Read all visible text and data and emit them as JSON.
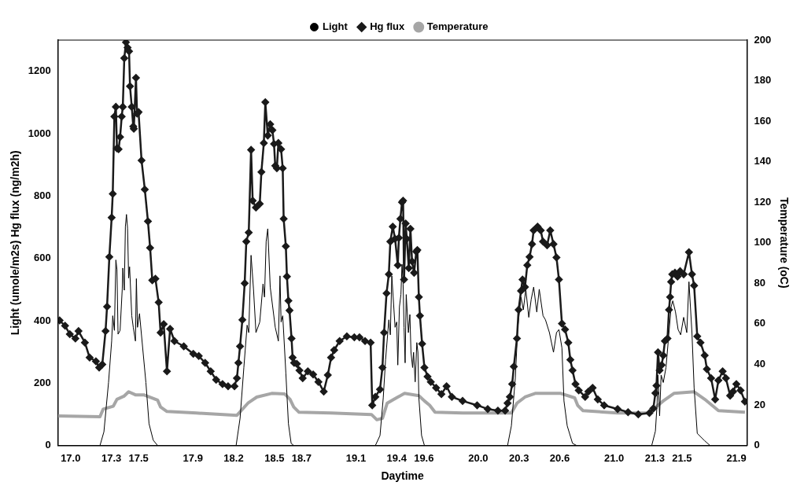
{
  "chart_data": {
    "type": "line",
    "xlabel": "Daytime",
    "ylabel": "Light (umole/m2s) Hg flux (ng/m2h)",
    "y2label": "Temperature (oC)",
    "xlim": [
      16.907,
      21.978
    ],
    "ylim": [
      0,
      1300
    ],
    "y2lim": [
      0,
      200
    ],
    "xticks": [
      {
        "value": 17.0,
        "label": "17.0"
      },
      {
        "value": 17.3,
        "label": "17.3"
      },
      {
        "value": 17.5,
        "label": "17.5"
      },
      {
        "value": 17.9,
        "label": "17.9"
      },
      {
        "value": 18.2,
        "label": "18.2"
      },
      {
        "value": 18.5,
        "label": "18.5"
      },
      {
        "value": 18.7,
        "label": "18.7"
      },
      {
        "value": 19.1,
        "label": "19.1"
      },
      {
        "value": 19.4,
        "label": "19.4"
      },
      {
        "value": 19.6,
        "label": "19.6"
      },
      {
        "value": 20.0,
        "label": "20.0"
      },
      {
        "value": 20.3,
        "label": "20.3"
      },
      {
        "value": 20.6,
        "label": "20.6"
      },
      {
        "value": 21.0,
        "label": "21.0"
      },
      {
        "value": 21.3,
        "label": "21.3"
      },
      {
        "value": 21.5,
        "label": "21.5"
      },
      {
        "value": 21.9,
        "label": "21.9"
      }
    ],
    "yticks": [
      0,
      200,
      400,
      600,
      800,
      1000,
      1200
    ],
    "y2ticks": [
      0,
      20,
      40,
      60,
      80,
      100,
      120,
      140,
      160,
      180,
      200
    ],
    "legend": "top",
    "series": [
      {
        "name": "Light",
        "color": "#000000",
        "marker": "none",
        "x": [
          16.907,
          17.216,
          17.245,
          17.279,
          17.302,
          17.31,
          17.322,
          17.333,
          17.341,
          17.349,
          17.364,
          17.38,
          17.384,
          17.395,
          17.403,
          17.411,
          17.419,
          17.427,
          17.434,
          17.45,
          17.461,
          17.477,
          17.484,
          17.492,
          17.507,
          17.522,
          17.554,
          17.577,
          17.608,
          17.64,
          18.218,
          18.247,
          18.275,
          18.299,
          18.311,
          18.328,
          18.346,
          18.364,
          18.392,
          18.416,
          18.427,
          18.439,
          18.451,
          18.469,
          18.506,
          18.529,
          18.541,
          18.549,
          18.561,
          18.568,
          18.584,
          18.603,
          18.623,
          18.642,
          19.243,
          19.277,
          19.301,
          19.318,
          19.342,
          19.353,
          19.364,
          19.388,
          19.4,
          19.408,
          19.42,
          19.431,
          19.439,
          19.447,
          19.454,
          19.462,
          19.47,
          19.486,
          19.497,
          19.505,
          19.517,
          19.524,
          19.536,
          19.548,
          19.556,
          19.563,
          19.583,
          19.604,
          20.216,
          20.244,
          20.273,
          20.291,
          20.315,
          20.332,
          20.35,
          20.372,
          20.39,
          20.408,
          20.431,
          20.449,
          20.477,
          20.495,
          20.524,
          20.554,
          20.576,
          20.594,
          20.616,
          20.631,
          20.655,
          20.694,
          20.724,
          21.277,
          21.304,
          21.316,
          21.323,
          21.335,
          21.346,
          21.362,
          21.382,
          21.401,
          21.42,
          21.432,
          21.452,
          21.471,
          21.49,
          21.512,
          21.535,
          21.551,
          21.573,
          21.589,
          21.612,
          21.667,
          21.706,
          21.963
        ],
        "values": [
          0,
          0,
          44,
          202,
          335,
          416,
          369,
          595,
          564,
          357,
          369,
          503,
          569,
          498,
          702,
          741,
          697,
          537,
          573,
          416,
          379,
          335,
          535,
          379,
          423,
          352,
          202,
          70,
          17,
          0,
          0,
          87,
          250,
          386,
          362,
          610,
          501,
          362,
          396,
          518,
          476,
          654,
          695,
          508,
          379,
          335,
          544,
          396,
          416,
          362,
          233,
          70,
          7,
          0,
          0,
          32,
          153,
          275,
          403,
          355,
          544,
          379,
          396,
          258,
          445,
          484,
          581,
          518,
          379,
          265,
          484,
          362,
          420,
          299,
          250,
          299,
          204,
          330,
          299,
          153,
          32,
          0,
          0,
          63,
          216,
          379,
          476,
          435,
          501,
          411,
          469,
          508,
          428,
          501,
          416,
          403,
          362,
          299,
          362,
          372,
          313,
          143,
          63,
          7,
          0,
          0,
          46,
          129,
          226,
          95,
          226,
          202,
          250,
          347,
          445,
          464,
          428,
          372,
          355,
          411,
          362,
          525,
          362,
          185,
          39,
          15,
          0,
          0
        ]
      },
      {
        "name": "Hg flux",
        "color": "#1a1a1a",
        "marker": "diamond",
        "x": [
          16.919,
          16.959,
          16.994,
          17.035,
          17.058,
          17.105,
          17.14,
          17.186,
          17.21,
          17.233,
          17.257,
          17.268,
          17.285,
          17.302,
          17.31,
          17.322,
          17.333,
          17.341,
          17.353,
          17.364,
          17.376,
          17.384,
          17.395,
          17.407,
          17.419,
          17.43,
          17.437,
          17.45,
          17.461,
          17.465,
          17.481,
          17.489,
          17.5,
          17.522,
          17.546,
          17.569,
          17.585,
          17.601,
          17.624,
          17.648,
          17.662,
          17.685,
          17.709,
          17.732,
          17.764,
          17.833,
          17.903,
          17.943,
          17.99,
          18.031,
          18.071,
          18.118,
          18.159,
          18.206,
          18.224,
          18.235,
          18.247,
          18.264,
          18.281,
          18.293,
          18.311,
          18.328,
          18.34,
          18.364,
          18.392,
          18.404,
          18.422,
          18.433,
          18.451,
          18.469,
          18.485,
          18.497,
          18.506,
          18.518,
          18.529,
          18.549,
          18.561,
          18.568,
          18.584,
          18.592,
          18.603,
          18.611,
          18.626,
          18.634,
          18.645,
          18.665,
          18.684,
          18.708,
          18.746,
          18.785,
          18.824,
          18.863,
          18.893,
          18.917,
          18.94,
          18.98,
          19.033,
          19.088,
          19.126,
          19.167,
          19.208,
          19.22,
          19.243,
          19.277,
          19.295,
          19.307,
          19.325,
          19.342,
          19.353,
          19.371,
          19.388,
          19.408,
          19.416,
          19.427,
          19.439,
          19.447,
          19.454,
          19.466,
          19.474,
          19.489,
          19.501,
          19.513,
          19.528,
          19.544,
          19.552,
          19.563,
          19.571,
          19.587,
          19.604,
          19.627,
          19.651,
          19.69,
          19.729,
          19.767,
          19.806,
          19.885,
          19.992,
          20.07,
          20.145,
          20.198,
          20.216,
          20.233,
          20.25,
          20.262,
          20.285,
          20.297,
          20.315,
          20.326,
          20.344,
          20.361,
          20.378,
          20.396,
          20.408,
          20.437,
          20.46,
          20.477,
          20.507,
          20.53,
          20.554,
          20.576,
          20.594,
          20.616,
          20.639,
          20.663,
          20.678,
          20.694,
          20.716,
          20.74,
          20.787,
          20.811,
          20.842,
          20.88,
          20.927,
          21.026,
          21.103,
          21.178,
          21.26,
          21.289,
          21.304,
          21.312,
          21.323,
          21.335,
          21.35,
          21.362,
          21.374,
          21.393,
          21.404,
          21.412,
          21.42,
          21.428,
          21.448,
          21.467,
          21.486,
          21.512,
          21.551,
          21.573,
          21.589,
          21.612,
          21.636,
          21.667,
          21.683,
          21.714,
          21.744,
          21.768,
          21.799,
          21.823,
          21.854,
          21.876,
          21.9,
          21.931,
          21.963
        ],
        "values": [
          401,
          384,
          357,
          343,
          367,
          330,
          282,
          270,
          250,
          260,
          367,
          445,
          605,
          731,
          807,
          1055,
          1086,
          953,
          950,
          989,
          1055,
          1086,
          1242,
          1293,
          1276,
          1264,
          1152,
          1086,
          1023,
          1016,
          1179,
          1064,
          1069,
          914,
          821,
          719,
          634,
          530,
          535,
          459,
          362,
          389,
          238,
          374,
          335,
          318,
          294,
          287,
          265,
          238,
          211,
          197,
          190,
          190,
          216,
          265,
          318,
          403,
          520,
          654,
          683,
          948,
          785,
          763,
          775,
          877,
          970,
          1101,
          994,
          1030,
          1011,
          967,
          897,
          889,
          970,
          950,
          889,
          727,
          639,
          542,
          464,
          433,
          343,
          282,
          265,
          262,
          241,
          216,
          238,
          228,
          204,
          173,
          226,
          282,
          306,
          335,
          350,
          347,
          347,
          335,
          330,
          129,
          156,
          180,
          250,
          362,
          488,
          549,
          654,
          702,
          663,
          578,
          666,
          727,
          780,
          785,
          532,
          712,
          663,
          569,
          695,
          590,
          554,
          622,
          627,
          476,
          416,
          326,
          250,
          221,
          204,
          185,
          165,
          190,
          156,
          143,
          129,
          117,
          112,
          112,
          136,
          156,
          197,
          253,
          343,
          435,
          496,
          532,
          508,
          578,
          605,
          646,
          690,
          702,
          690,
          654,
          642,
          690,
          646,
          603,
          532,
          391,
          372,
          330,
          275,
          241,
          197,
          177,
          156,
          173,
          185,
          148,
          129,
          117,
          107,
          100,
          104,
          119,
          168,
          192,
          299,
          241,
          258,
          289,
          335,
          343,
          435,
          476,
          525,
          549,
          554,
          542,
          559,
          549,
          620,
          549,
          513,
          350,
          330,
          289,
          245,
          216,
          148,
          209,
          238,
          216,
          160,
          173,
          197,
          177,
          141
        ]
      },
      {
        "name": "Temperature",
        "color": "#a6a6a6",
        "marker": "none",
        "axis": "y2",
        "x": [
          16.907,
          17.216,
          17.239,
          17.314,
          17.341,
          17.392,
          17.427,
          17.477,
          17.538,
          17.64,
          17.662,
          17.709,
          17.926,
          18.224,
          18.305,
          18.37,
          18.48,
          18.576,
          18.615,
          18.642,
          18.681,
          18.917,
          19.214,
          19.254,
          19.295,
          19.33,
          19.408,
          19.458,
          19.563,
          19.604,
          19.643,
          19.682,
          19.885,
          20.244,
          20.285,
          20.344,
          20.419,
          20.608,
          20.71,
          20.732,
          20.771,
          21.026,
          21.26,
          21.323,
          21.362,
          21.44,
          21.589,
          21.667,
          21.768,
          21.963
        ],
        "values": [
          14.6,
          14.2,
          17.9,
          19.4,
          22.8,
          24.3,
          26.5,
          25,
          25,
          22.4,
          19,
          16.8,
          16,
          14.9,
          20.9,
          23.9,
          25.7,
          25.4,
          22.8,
          19,
          16.4,
          16,
          15.3,
          12.7,
          13.4,
          20.9,
          23.9,
          25.7,
          24.6,
          22,
          19.8,
          16.4,
          16,
          16,
          20.9,
          23.9,
          25.7,
          25.7,
          23.5,
          19.8,
          17.2,
          16,
          16,
          19.8,
          22,
          25.7,
          26.5,
          22.8,
          17.2,
          16.4
        ]
      }
    ]
  }
}
